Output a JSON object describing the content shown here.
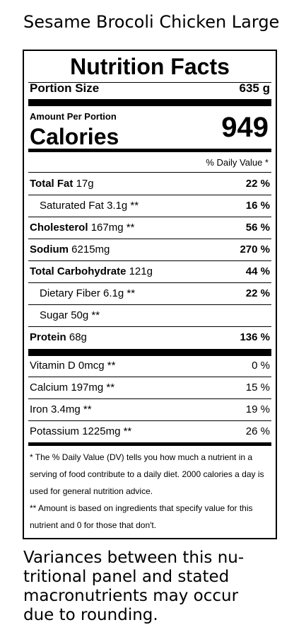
{
  "title": "Sesame Brocoli Chicken Large",
  "panel": {
    "heading": "Nutrition Facts",
    "portion_label": "Portion Size",
    "portion_value": "635 g",
    "amount_per": "Amount Per Portion",
    "calories_label": "Calories",
    "calories_value": "949",
    "dv_header": "% Daily Value *",
    "nutrients": [
      {
        "name": "Total Fat",
        "amount": "17g",
        "dv": "22 %"
      },
      {
        "name": "Saturated Fat",
        "amount": "3.1g **",
        "dv": "16 %"
      },
      {
        "name": "Cholesterol",
        "amount": "167mg **",
        "dv": "56 %"
      },
      {
        "name": "Sodium",
        "amount": "6215mg",
        "dv": "270 %"
      },
      {
        "name": "Total Carbohydrate",
        "amount": "121g",
        "dv": "44 %"
      },
      {
        "name": "Dietary Fiber",
        "amount": "6.1g **",
        "dv": "22 %"
      },
      {
        "name": "Sugar",
        "amount": "50g **",
        "dv": ""
      },
      {
        "name": "Protein",
        "amount": "68g",
        "dv": "136 %"
      }
    ],
    "vitamins": [
      {
        "name": "Vitamin D",
        "amount": "0mcg **",
        "dv": "0 %"
      },
      {
        "name": "Calcium",
        "amount": "197mg **",
        "dv": "15 %"
      },
      {
        "name": "Iron",
        "amount": "3.4mg **",
        "dv": "19 %"
      },
      {
        "name": "Potassium",
        "amount": "1225mg **",
        "dv": "26 %"
      }
    ],
    "footnote_dv": "* The % Daily Value (DV) tells you how much a nutrient in a serving of food contribute to a daily diet. 2000 calories a day is used for general nutrition advice.",
    "footnote_amount": "** Amount is based on ingredients that specify value for this nutrient and 0 for those that don't."
  },
  "bottom_note": "Variances between this nu-tritional panel and stated macronutrients may occur due to rounding."
}
